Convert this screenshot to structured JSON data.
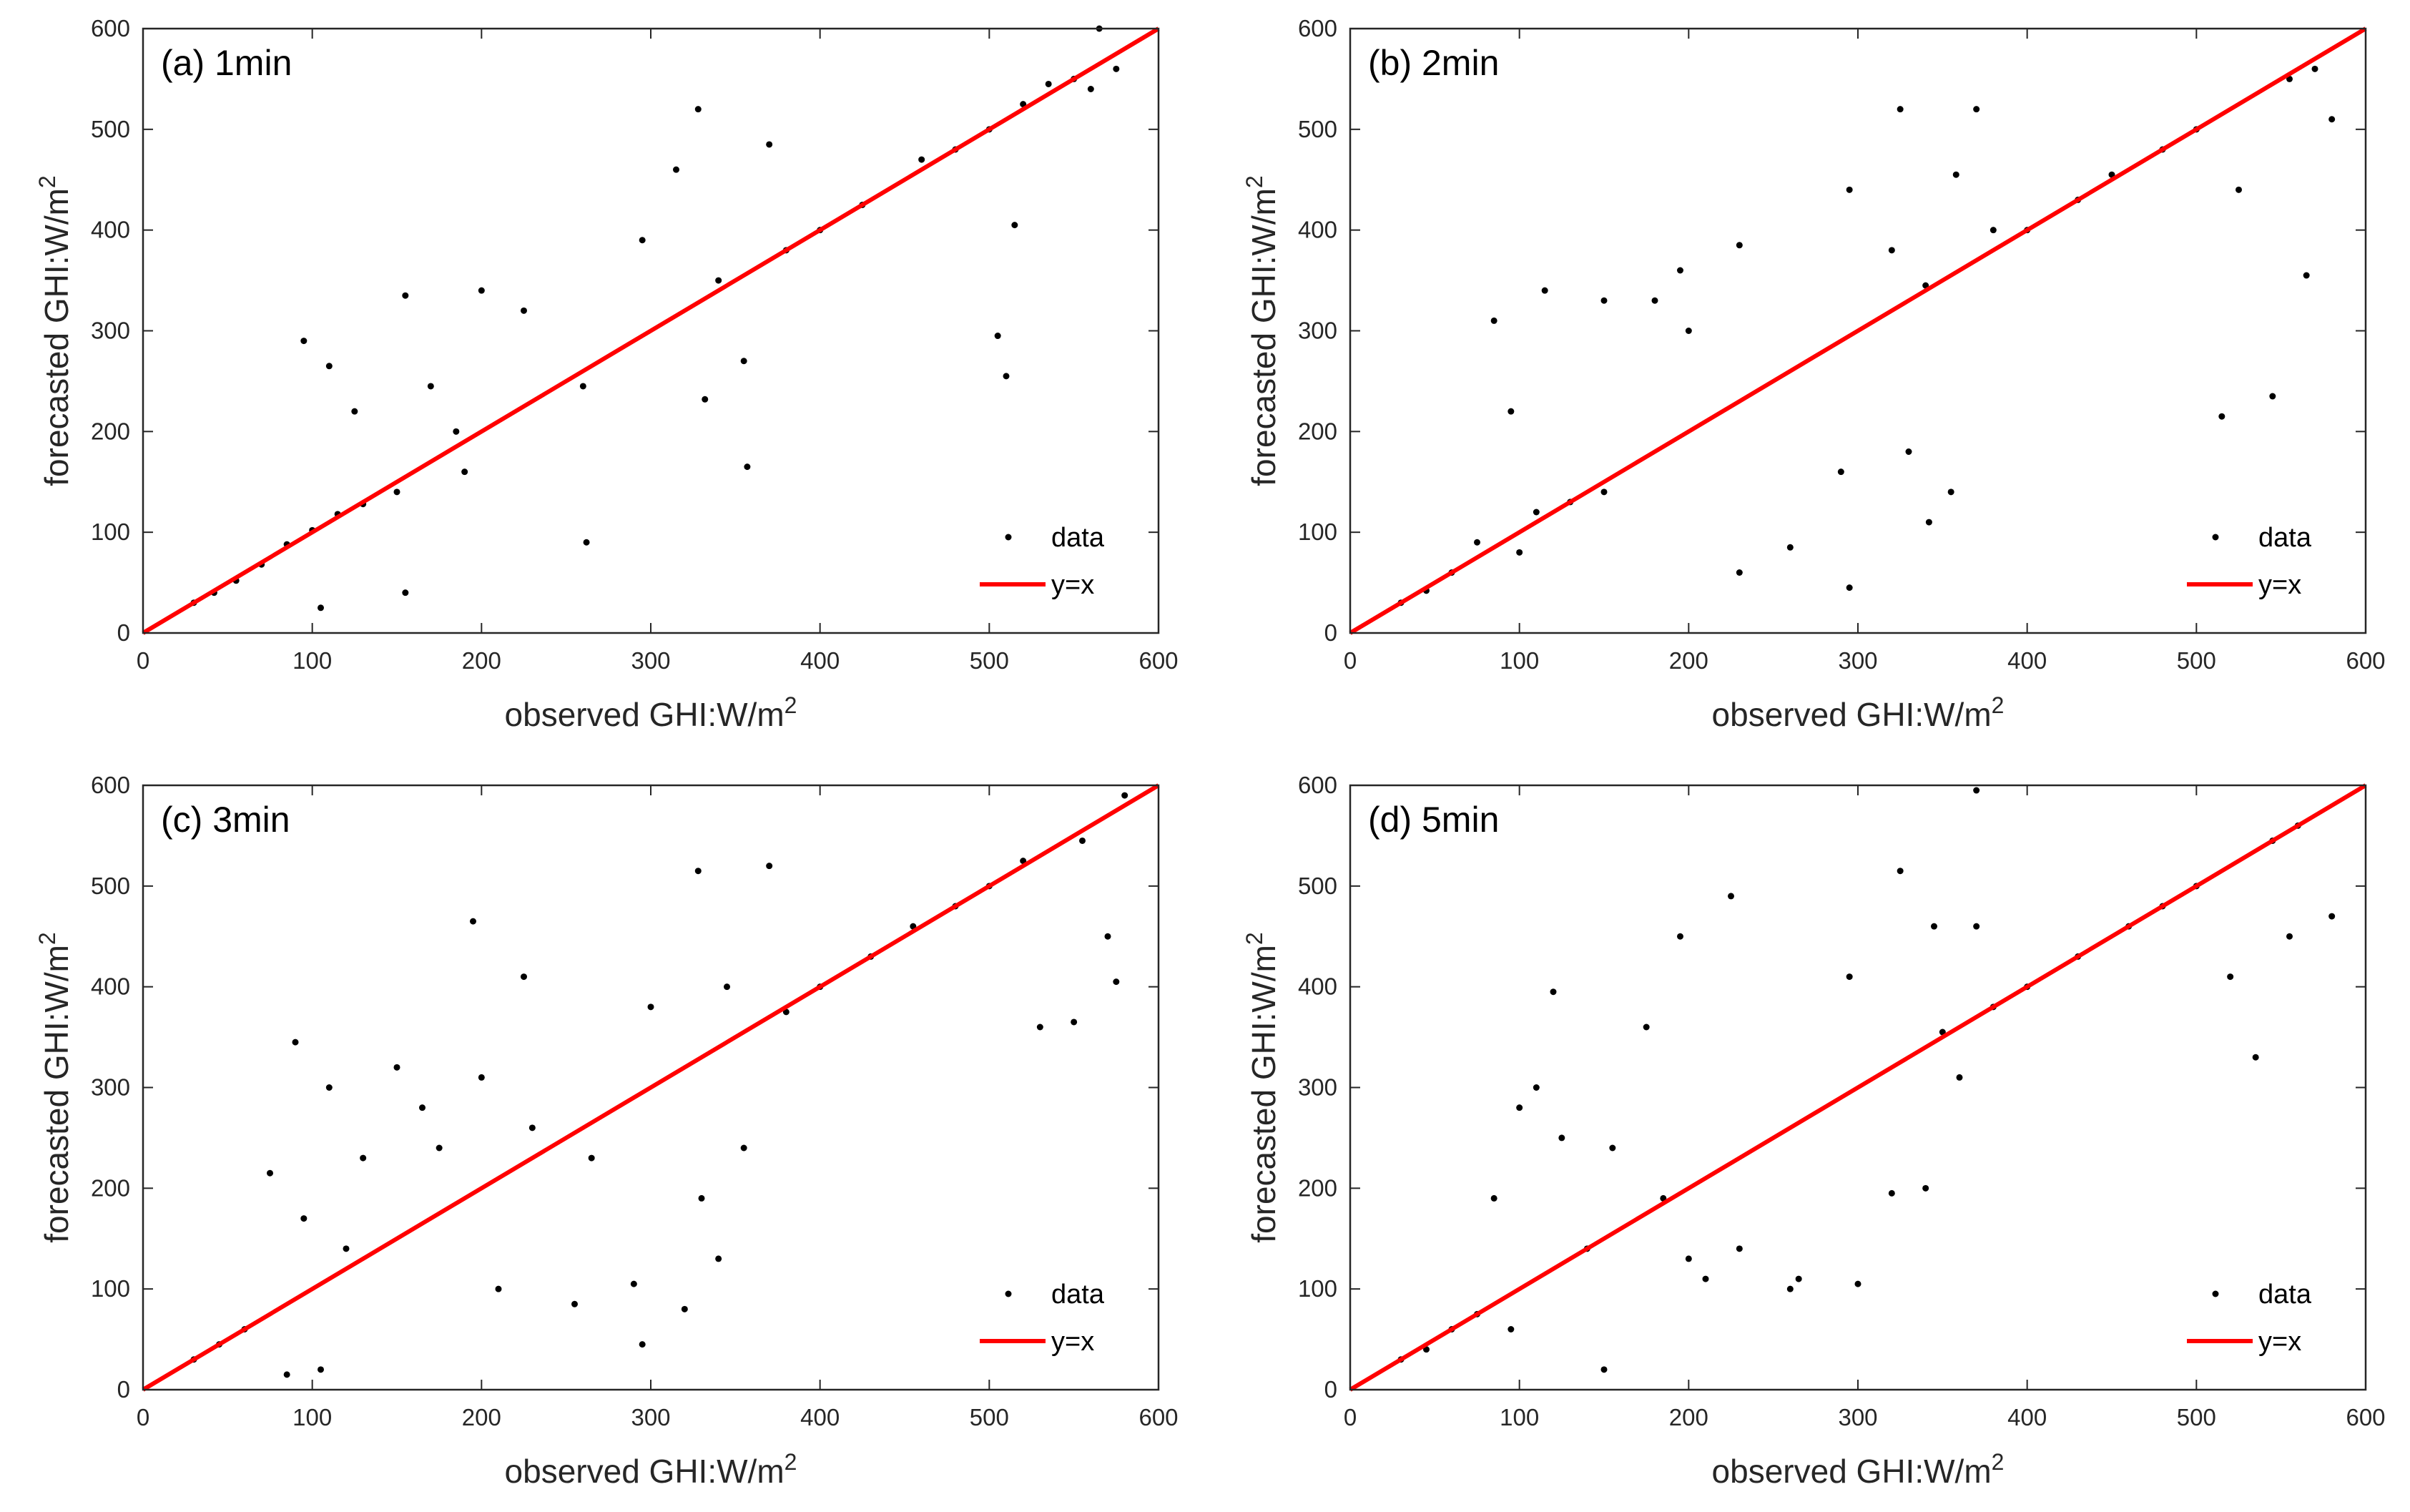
{
  "figure": {
    "colors": {
      "data": "#000000",
      "line": "#ff0000",
      "axis": "#262626",
      "background": "#ffffff"
    },
    "legend": {
      "data_label": "data",
      "line_label": "y=x",
      "location": "bottom-right"
    },
    "xlabel": {
      "main": "observed GHI:W/m",
      "sup": "2"
    },
    "ylabel": {
      "main": "forecasted GHI:W/m",
      "sup": "2"
    }
  },
  "chart_data": [
    {
      "type": "scatter",
      "title": "(a) 1min",
      "xlim": [
        0,
        600
      ],
      "ylim": [
        0,
        600
      ],
      "xticks": [
        "0",
        "100",
        "200",
        "300",
        "400",
        "500",
        "600"
      ],
      "yticks": [
        "0",
        "100",
        "200",
        "300",
        "400",
        "500",
        "600"
      ],
      "series": [
        {
          "name": "data",
          "points": [
            [
              30,
              30
            ],
            [
              42,
              40
            ],
            [
              55,
              52
            ],
            [
              70,
              68
            ],
            [
              85,
              88
            ],
            [
              100,
              102
            ],
            [
              115,
              118
            ],
            [
              130,
              128
            ],
            [
              150,
              140
            ],
            [
              95,
              290
            ],
            [
              110,
              265
            ],
            [
              125,
              220
            ],
            [
              155,
              335
            ],
            [
              200,
              340
            ],
            [
              225,
              320
            ],
            [
              170,
              245
            ],
            [
              185,
              200
            ],
            [
              190,
              160
            ],
            [
              260,
              245
            ],
            [
              262,
              90
            ],
            [
              155,
              40
            ],
            [
              105,
              25
            ],
            [
              295,
              390
            ],
            [
              315,
              460
            ],
            [
              328,
              520
            ],
            [
              332,
              232
            ],
            [
              340,
              350
            ],
            [
              355,
              270
            ],
            [
              357,
              165
            ],
            [
              370,
              485
            ],
            [
              380,
              380
            ],
            [
              400,
              400
            ],
            [
              425,
              425
            ],
            [
              460,
              470
            ],
            [
              480,
              480
            ],
            [
              500,
              500
            ],
            [
              505,
              295
            ],
            [
              510,
              255
            ],
            [
              515,
              405
            ],
            [
              520,
              525
            ],
            [
              550,
              550
            ],
            [
              565,
              600
            ],
            [
              575,
              560
            ],
            [
              560,
              540
            ],
            [
              535,
              545
            ]
          ]
        },
        {
          "name": "y=x",
          "x": [
            0,
            600
          ],
          "y": [
            0,
            600
          ]
        }
      ]
    },
    {
      "type": "scatter",
      "title": "(b) 2min",
      "xlim": [
        0,
        600
      ],
      "ylim": [
        0,
        600
      ],
      "xticks": [
        "0",
        "100",
        "200",
        "300",
        "400",
        "500",
        "600"
      ],
      "yticks": [
        "0",
        "100",
        "200",
        "300",
        "400",
        "500",
        "600"
      ],
      "series": [
        {
          "name": "data",
          "points": [
            [
              30,
              30
            ],
            [
              45,
              42
            ],
            [
              60,
              60
            ],
            [
              75,
              90
            ],
            [
              85,
              310
            ],
            [
              95,
              220
            ],
            [
              100,
              80
            ],
            [
              110,
              120
            ],
            [
              115,
              340
            ],
            [
              130,
              130
            ],
            [
              150,
              140
            ],
            [
              150,
              330
            ],
            [
              180,
              330
            ],
            [
              195,
              360
            ],
            [
              200,
              300
            ],
            [
              230,
              385
            ],
            [
              230,
              60
            ],
            [
              260,
              85
            ],
            [
              290,
              160
            ],
            [
              295,
              45
            ],
            [
              295,
              440
            ],
            [
              320,
              380
            ],
            [
              325,
              520
            ],
            [
              330,
              180
            ],
            [
              340,
              345
            ],
            [
              342,
              110
            ],
            [
              355,
              140
            ],
            [
              358,
              455
            ],
            [
              370,
              520
            ],
            [
              380,
              400
            ],
            [
              400,
              400
            ],
            [
              430,
              430
            ],
            [
              450,
              455
            ],
            [
              480,
              480
            ],
            [
              500,
              500
            ],
            [
              515,
              215
            ],
            [
              525,
              440
            ],
            [
              545,
              235
            ],
            [
              555,
              550
            ],
            [
              565,
              355
            ],
            [
              570,
              560
            ],
            [
              580,
              510
            ]
          ]
        },
        {
          "name": "y=x",
          "x": [
            0,
            600
          ],
          "y": [
            0,
            600
          ]
        }
      ]
    },
    {
      "type": "scatter",
      "title": "(c) 3min",
      "xlim": [
        0,
        600
      ],
      "ylim": [
        0,
        600
      ],
      "xticks": [
        "0",
        "100",
        "200",
        "300",
        "400",
        "500",
        "600"
      ],
      "yticks": [
        "0",
        "100",
        "200",
        "300",
        "400",
        "500",
        "600"
      ],
      "series": [
        {
          "name": "data",
          "points": [
            [
              30,
              30
            ],
            [
              45,
              45
            ],
            [
              60,
              60
            ],
            [
              75,
              215
            ],
            [
              85,
              15
            ],
            [
              90,
              345
            ],
            [
              95,
              170
            ],
            [
              105,
              20
            ],
            [
              110,
              300
            ],
            [
              120,
              140
            ],
            [
              130,
              230
            ],
            [
              150,
              320
            ],
            [
              165,
              280
            ],
            [
              175,
              240
            ],
            [
              195,
              465
            ],
            [
              200,
              310
            ],
            [
              210,
              100
            ],
            [
              225,
              410
            ],
            [
              230,
              260
            ],
            [
              255,
              85
            ],
            [
              265,
              230
            ],
            [
              290,
              105
            ],
            [
              295,
              45
            ],
            [
              300,
              380
            ],
            [
              320,
              80
            ],
            [
              328,
              515
            ],
            [
              330,
              190
            ],
            [
              340,
              130
            ],
            [
              345,
              400
            ],
            [
              355,
              240
            ],
            [
              370,
              520
            ],
            [
              380,
              375
            ],
            [
              400,
              400
            ],
            [
              430,
              430
            ],
            [
              455,
              460
            ],
            [
              480,
              480
            ],
            [
              500,
              500
            ],
            [
              520,
              525
            ],
            [
              530,
              360
            ],
            [
              550,
              365
            ],
            [
              555,
              545
            ],
            [
              570,
              450
            ],
            [
              575,
              405
            ],
            [
              580,
              590
            ]
          ]
        },
        {
          "name": "y=x",
          "x": [
            0,
            600
          ],
          "y": [
            0,
            600
          ]
        }
      ]
    },
    {
      "type": "scatter",
      "title": "(d) 5min",
      "xlim": [
        0,
        600
      ],
      "ylim": [
        0,
        600
      ],
      "xticks": [
        "0",
        "100",
        "200",
        "300",
        "400",
        "500",
        "600"
      ],
      "yticks": [
        "0",
        "100",
        "200",
        "300",
        "400",
        "500",
        "600"
      ],
      "series": [
        {
          "name": "data",
          "points": [
            [
              30,
              30
            ],
            [
              45,
              40
            ],
            [
              60,
              60
            ],
            [
              75,
              75
            ],
            [
              85,
              190
            ],
            [
              95,
              60
            ],
            [
              100,
              280
            ],
            [
              110,
              300
            ],
            [
              120,
              395
            ],
            [
              125,
              250
            ],
            [
              140,
              140
            ],
            [
              150,
              20
            ],
            [
              155,
              240
            ],
            [
              175,
              360
            ],
            [
              185,
              190
            ],
            [
              195,
              450
            ],
            [
              200,
              130
            ],
            [
              210,
              110
            ],
            [
              225,
              490
            ],
            [
              230,
              140
            ],
            [
              260,
              100
            ],
            [
              265,
              110
            ],
            [
              295,
              410
            ],
            [
              300,
              105
            ],
            [
              320,
              195
            ],
            [
              325,
              515
            ],
            [
              340,
              200
            ],
            [
              345,
              460
            ],
            [
              350,
              355
            ],
            [
              360,
              310
            ],
            [
              370,
              460
            ],
            [
              370,
              595
            ],
            [
              380,
              380
            ],
            [
              400,
              400
            ],
            [
              430,
              430
            ],
            [
              460,
              460
            ],
            [
              480,
              480
            ],
            [
              500,
              500
            ],
            [
              520,
              410
            ],
            [
              535,
              330
            ],
            [
              545,
              545
            ],
            [
              555,
              450
            ],
            [
              560,
              560
            ],
            [
              580,
              470
            ]
          ]
        },
        {
          "name": "y=x",
          "x": [
            0,
            600
          ],
          "y": [
            0,
            600
          ]
        }
      ]
    }
  ]
}
